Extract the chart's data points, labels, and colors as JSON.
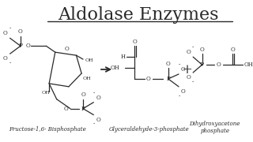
{
  "title": "Aldolase Enzymes",
  "title_fontsize": 16,
  "title_font": "serif",
  "bg_color": "#ffffff",
  "line_color": "#2a2a2a",
  "label1": "Fructose-1,6- Bisphosphate",
  "label2": "Glyceraldehyde-3-phosphate",
  "label3": "Dihydroxyacetone\nphosphate",
  "label_fontsize": 5.0,
  "label_font": "serif"
}
